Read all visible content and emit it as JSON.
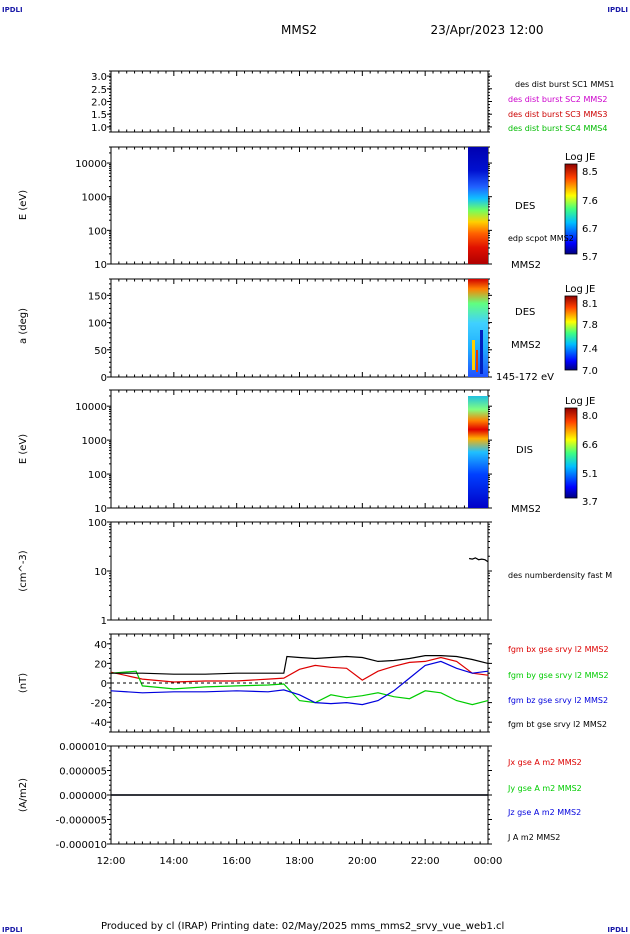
{
  "header": {
    "corner_left": "IPDLI",
    "corner_right": "IPDLI",
    "mission": "MMS2",
    "datetime": "23/Apr/2023 12:00"
  },
  "footer": {
    "text": "Produced by cl (IRAP)   Printing date: 02/May/2025   mms_mms2_srvy_vue_web1.cl",
    "corner_left": "IPDLI",
    "corner_right": "IPDLI"
  },
  "chart_data": [
    {
      "type": "line",
      "panel": "data-availability",
      "ylim": [
        0.8,
        3.2
      ],
      "yticks": [
        "3.0",
        "2.5",
        "2.0",
        "1.5",
        "1.0"
      ],
      "legend": [
        {
          "text": "des dist burst SC1 MMS1",
          "color": "#0000cc"
        },
        {
          "text": "des dist burst SC2 MMS2",
          "color": "#cc00cc"
        },
        {
          "text": "des dist burst SC3 MMS3",
          "color": "#cc0000"
        },
        {
          "text": "des dist burst SC4 MMS4",
          "color": "#00bb00"
        }
      ]
    },
    {
      "type": "heatmap",
      "panel": "des-energy",
      "ylabel": "E (eV)",
      "yscale": "log",
      "ylim": [
        10,
        30000
      ],
      "yticks": [
        "10000",
        "1000",
        "100",
        "10"
      ],
      "label": "DES",
      "sublabel": "MMS2",
      "overlay_label": "edp scpot MMS2",
      "colorbar": {
        "title": "Log JE",
        "ticks": [
          "8.5",
          "7.6",
          "6.7",
          "5.7"
        ]
      }
    },
    {
      "type": "heatmap",
      "panel": "des-pitch-angle",
      "ylabel": "a (deg)",
      "ylim": [
        0,
        180
      ],
      "yticks": [
        "150",
        "100",
        "50",
        "0"
      ],
      "label": "DES",
      "sublabel": "MMS2",
      "energy_range": "145-172 eV",
      "colorbar": {
        "title": "Log JE",
        "ticks": [
          "8.1",
          "7.8",
          "7.4",
          "7.0"
        ]
      }
    },
    {
      "type": "heatmap",
      "panel": "dis-energy",
      "ylabel": "E (eV)",
      "yscale": "log",
      "ylim": [
        10,
        30000
      ],
      "yticks": [
        "10000",
        "1000",
        "100",
        "10"
      ],
      "label": "DIS",
      "sublabel": "MMS2",
      "colorbar": {
        "title": "Log JE",
        "ticks": [
          "8.0",
          "6.6",
          "5.1",
          "3.7"
        ]
      }
    },
    {
      "type": "line",
      "panel": "density",
      "ylabel": "(cm^-3)",
      "yscale": "log",
      "ylim": [
        1,
        100
      ],
      "yticks": [
        "100",
        "10",
        "1"
      ],
      "series": [
        {
          "name": "des numberdensity fast M",
          "color": "#000000",
          "x": [
            23.4,
            23.5,
            23.6,
            23.7,
            23.8,
            23.9,
            24.0
          ],
          "values": [
            18,
            17.5,
            18.5,
            17,
            17.5,
            17,
            15.5
          ]
        }
      ]
    },
    {
      "type": "line",
      "panel": "magnetic-field",
      "ylabel": "(nT)",
      "ylim": [
        -50,
        50
      ],
      "yticks": [
        "40",
        "20",
        "0",
        "-20",
        "-40"
      ],
      "series": [
        {
          "name": "fgm bx gse srvy l2 MMS2",
          "color": "#dd0000",
          "x": [
            12,
            13,
            14,
            15,
            16,
            17,
            17.5,
            18,
            18.5,
            19,
            19.5,
            20,
            20.5,
            21,
            21.5,
            22,
            22.5,
            23,
            23.5,
            24
          ],
          "values": [
            11,
            4,
            1,
            2,
            2,
            4,
            5,
            14,
            18,
            16,
            15,
            3,
            12,
            17,
            21,
            22,
            26,
            22,
            10,
            8
          ]
        },
        {
          "name": "fgm by gse srvy l2 MMS2",
          "color": "#00cc00",
          "x": [
            12,
            12.8,
            13,
            14,
            15,
            16,
            17,
            17.5,
            18,
            18.5,
            19,
            19.5,
            20,
            20.5,
            21,
            21.5,
            22,
            22.5,
            23,
            23.5,
            24
          ],
          "values": [
            10,
            12,
            -3,
            -6,
            -4,
            -3,
            -2,
            -1,
            -18,
            -20,
            -12,
            -15,
            -13,
            -10,
            -14,
            -16,
            -8,
            -10,
            -18,
            -22,
            -18
          ]
        },
        {
          "name": "fgm bz gse srvy l2 MMS2",
          "color": "#0000dd",
          "x": [
            12,
            13,
            14,
            15,
            16,
            17,
            17.5,
            18,
            18.5,
            19,
            19.5,
            20,
            20.5,
            21,
            21.5,
            22,
            22.5,
            23,
            23.5,
            24
          ],
          "values": [
            -8,
            -10,
            -9,
            -9,
            -8,
            -9,
            -7,
            -12,
            -20,
            -21,
            -20,
            -22,
            -18,
            -8,
            5,
            18,
            22,
            15,
            10,
            12
          ]
        },
        {
          "name": "fgm bt gse srvy l2 MMS2",
          "color": "#000000",
          "x": [
            12,
            13,
            14,
            15,
            16,
            17,
            17.5,
            17.6,
            18,
            18.5,
            19,
            19.5,
            20,
            20.5,
            21,
            21.5,
            22,
            22.5,
            23,
            23.5,
            24
          ],
          "values": [
            10,
            10,
            9,
            9,
            10,
            10,
            10,
            27,
            26,
            25,
            26,
            27,
            26,
            22,
            23,
            25,
            28,
            28,
            27,
            24,
            20
          ]
        }
      ]
    },
    {
      "type": "line",
      "panel": "current-density",
      "ylabel": "(A/m2)",
      "ylim": [
        -1e-05,
        1e-05
      ],
      "yticks": [
        "0.000010",
        "0.000005",
        "0.000000",
        "-0.000005",
        "-0.000010"
      ],
      "series": [
        {
          "name": "Jx gse A m2 MMS2",
          "color": "#dd0000",
          "x": [
            12,
            24
          ],
          "values": [
            0,
            0
          ]
        },
        {
          "name": "Jy gse A m2 MMS2",
          "color": "#00cc00",
          "x": [
            12,
            24
          ],
          "values": [
            0,
            0
          ]
        },
        {
          "name": "Jz gse A m2 MMS2",
          "color": "#0000dd",
          "x": [
            12,
            24
          ],
          "values": [
            0,
            0
          ]
        },
        {
          "name": "J A m2 MMS2",
          "color": "#000000",
          "x": [
            12,
            24
          ],
          "values": [
            0,
            0
          ]
        }
      ]
    }
  ],
  "xaxis": {
    "xlim": [
      12,
      24
    ],
    "ticks": [
      {
        "x": 12,
        "label": "12:00"
      },
      {
        "x": 14,
        "label": "14:00"
      },
      {
        "x": 16,
        "label": "16:00"
      },
      {
        "x": 18,
        "label": "18:00"
      },
      {
        "x": 20,
        "label": "20:00"
      },
      {
        "x": 22,
        "label": "22:00"
      },
      {
        "x": 24,
        "label": "00:00"
      }
    ]
  }
}
